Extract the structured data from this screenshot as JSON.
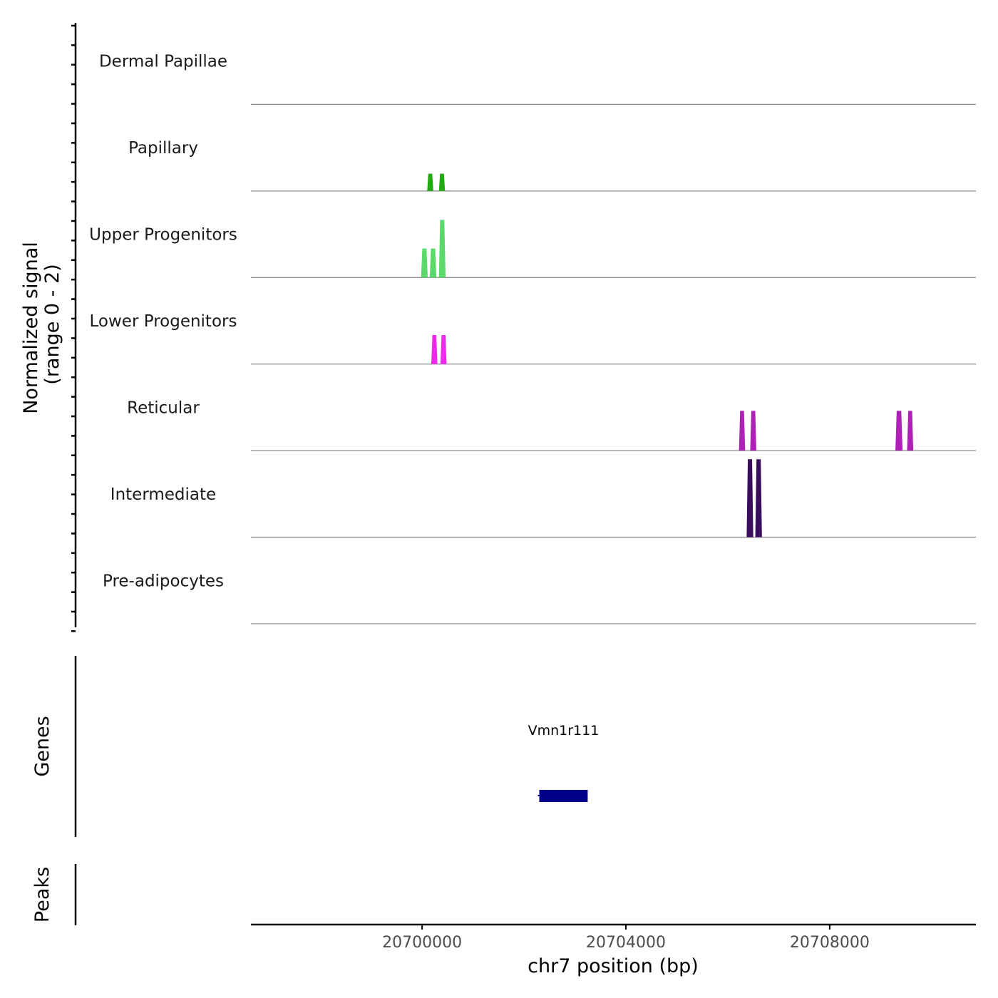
{
  "chart_data": {
    "type": "area",
    "title": "",
    "coverage": {
      "ylabel_line1": "Normalized signal",
      "ylabel_line2": "(range 0 - 2)",
      "ylim": [
        0,
        2
      ],
      "tracks": [
        {
          "name": "Dermal Papillae",
          "color": "#2b8c1f",
          "peaks": []
        },
        {
          "name": "Papillary",
          "color": "#22aa12",
          "peaks": [
            [
              20700100,
              20700220,
              0.4
            ],
            [
              20700330,
              20700450,
              0.4
            ]
          ]
        },
        {
          "name": "Upper Progenitors",
          "color": "#5bd96b",
          "peaks": [
            [
              20699980,
              20700110,
              0.67
            ],
            [
              20700150,
              20700280,
              0.67
            ],
            [
              20700330,
              20700460,
              1.33
            ]
          ]
        },
        {
          "name": "Lower Progenitors",
          "color": "#f027ee",
          "peaks": [
            [
              20700180,
              20700300,
              0.67
            ],
            [
              20700360,
              20700480,
              0.67
            ]
          ]
        },
        {
          "name": "Reticular",
          "color": "#b01fb8",
          "peaks": [
            [
              20706220,
              20706340,
              0.92
            ],
            [
              20706440,
              20706560,
              0.92
            ],
            [
              20709290,
              20709430,
              0.92
            ],
            [
              20709520,
              20709640,
              0.92
            ]
          ]
        },
        {
          "name": "Intermediate",
          "color": "#3a0c5c",
          "peaks": [
            [
              20706370,
              20706500,
              1.8
            ],
            [
              20706540,
              20706670,
              1.8
            ]
          ]
        },
        {
          "name": "Pre-adipocytes",
          "color": "#2f1a4a",
          "peaks": []
        }
      ]
    },
    "genes": {
      "ylabel": "Genes",
      "items": [
        {
          "name": "Vmn1r111",
          "start": 20702300,
          "end": 20703250,
          "color": "#00008b"
        }
      ]
    },
    "peaks_track": {
      "ylabel": "Peaks",
      "items": []
    },
    "x_axis": {
      "xlabel": "chr7 position (bp)",
      "xlim": [
        20696640,
        20710870
      ],
      "ticks": [
        20700000,
        20704000,
        20708000
      ],
      "tick_labels": [
        "20700000",
        "20704000",
        "20708000"
      ]
    }
  }
}
